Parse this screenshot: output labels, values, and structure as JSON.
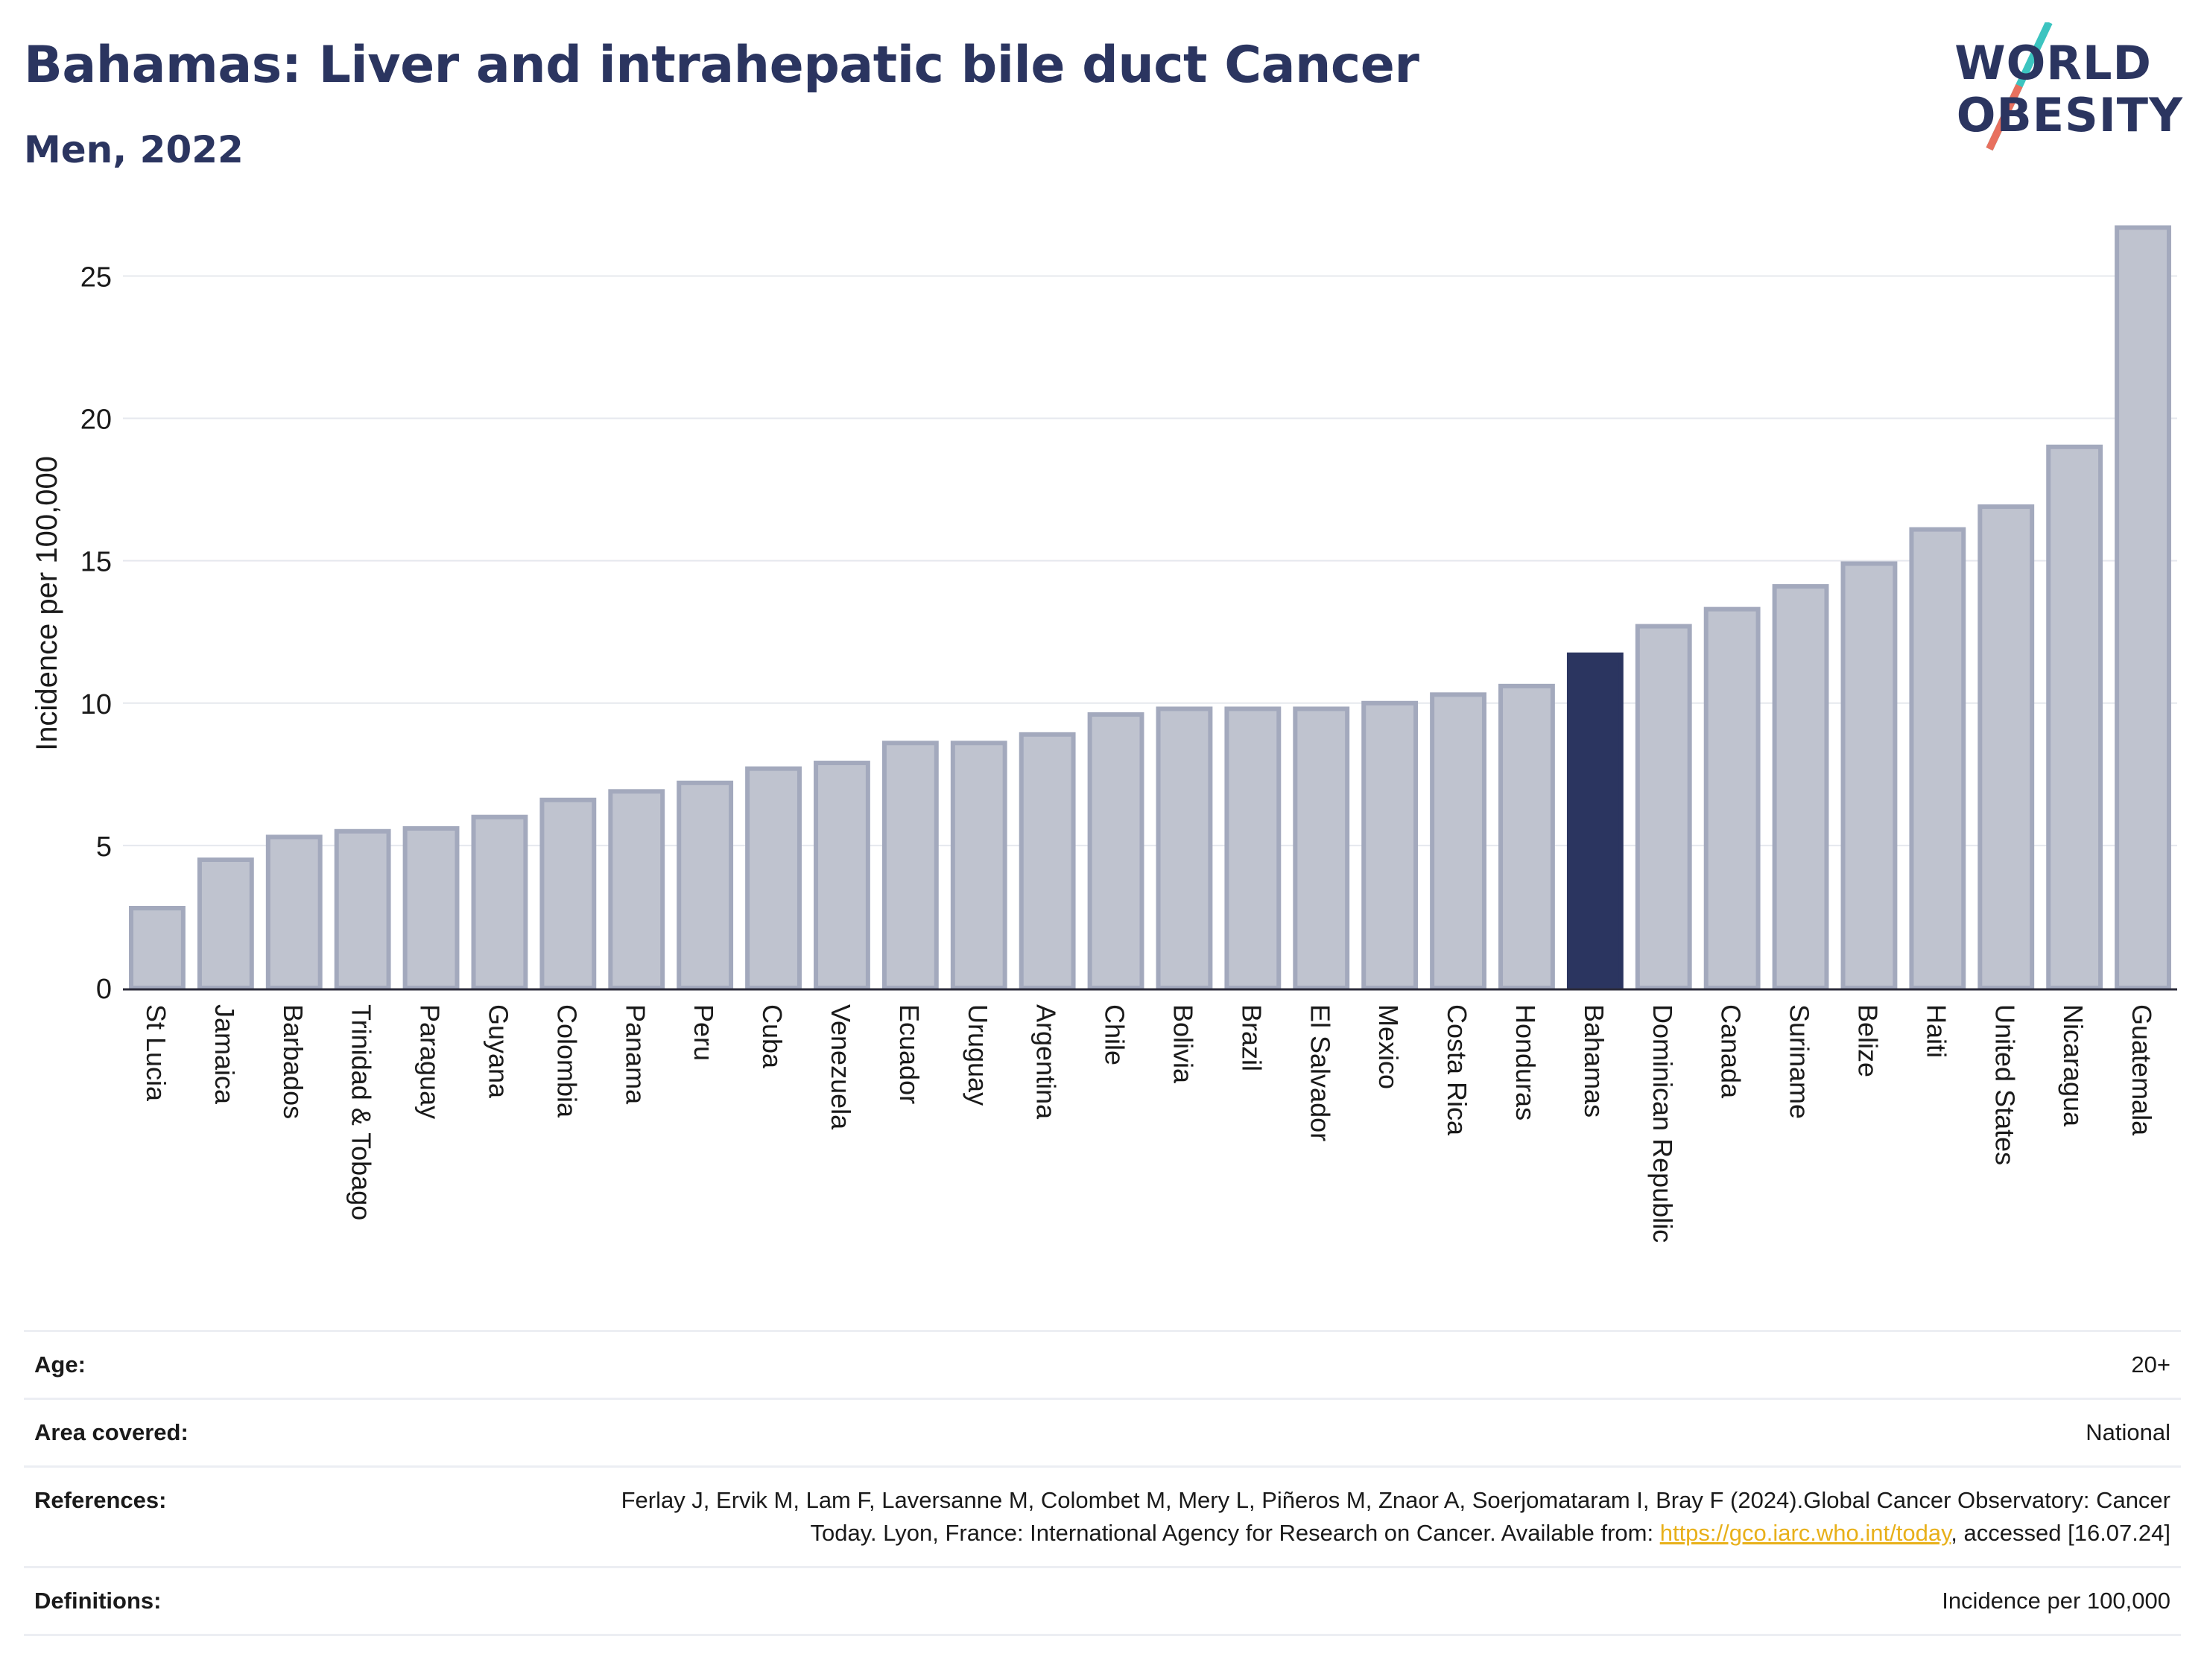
{
  "header": {
    "title": "Bahamas: Liver and intrahepatic bile duct Cancer",
    "subtitle": "Men, 2022"
  },
  "logo": {
    "line1": "WORLD",
    "line2": "OBESITY",
    "slash_colors": [
      "#3cc4c0",
      "#e8705e"
    ]
  },
  "colors": {
    "bar_default": "#bfc3cf",
    "bar_default_stroke": "#a3a9bd",
    "bar_highlight": "#2b3560",
    "axis_text": "#1a1a1a",
    "grid": "#e6e8ee",
    "link": "#e8b01a"
  },
  "chart_data": {
    "type": "bar",
    "ylabel": "Incidence per 100,000",
    "ylim": [
      0,
      27
    ],
    "yticks": [
      0,
      5,
      10,
      15,
      20,
      25
    ],
    "highlight": "Bahamas",
    "categories": [
      "St Lucia",
      "Jamaica",
      "Barbados",
      "Trinidad & Tobago",
      "Paraguay",
      "Guyana",
      "Colombia",
      "Panama",
      "Peru",
      "Cuba",
      "Venezuela",
      "Ecuador",
      "Uruguay",
      "Argentina",
      "Chile",
      "Bolivia",
      "Brazil",
      "El Salvador",
      "Mexico",
      "Costa Rica",
      "Honduras",
      "Bahamas",
      "Dominican Republic",
      "Canada",
      "Suriname",
      "Belize",
      "Haiti",
      "United States",
      "Nicaragua",
      "Guatemala"
    ],
    "values": [
      2.8,
      4.5,
      5.3,
      5.5,
      5.6,
      6.0,
      6.6,
      6.9,
      7.2,
      7.7,
      7.9,
      8.6,
      8.6,
      8.9,
      9.6,
      9.8,
      9.8,
      9.8,
      10.0,
      10.3,
      10.6,
      11.7,
      12.7,
      13.3,
      14.1,
      14.9,
      16.1,
      16.9,
      19.0,
      26.7
    ],
    "grid": true
  },
  "info": [
    {
      "key": "Age:",
      "value": "20+"
    },
    {
      "key": "Area covered:",
      "value": "National"
    },
    {
      "key": "References:",
      "value_pre": "Ferlay J, Ervik M, Lam F, Laversanne M, Colombet M, Mery L, Piñeros M, Znaor A, Soerjomataram I, Bray F (2024).Global Cancer Observatory: Cancer Today. Lyon, France: International Agency for Research on Cancer. Available from: ",
      "link": "https://gco.iarc.who.int/today",
      "value_post": ", accessed [16.07.24]"
    },
    {
      "key": "Definitions:",
      "value": "Incidence per 100,000"
    }
  ]
}
